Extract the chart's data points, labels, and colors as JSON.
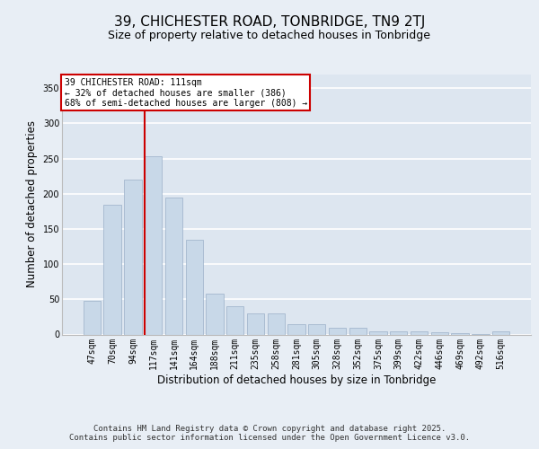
{
  "title": "39, CHICHESTER ROAD, TONBRIDGE, TN9 2TJ",
  "subtitle": "Size of property relative to detached houses in Tonbridge",
  "xlabel": "Distribution of detached houses by size in Tonbridge",
  "ylabel": "Number of detached properties",
  "categories": [
    "47sqm",
    "70sqm",
    "94sqm",
    "117sqm",
    "141sqm",
    "164sqm",
    "188sqm",
    "211sqm",
    "235sqm",
    "258sqm",
    "281sqm",
    "305sqm",
    "328sqm",
    "352sqm",
    "375sqm",
    "399sqm",
    "422sqm",
    "446sqm",
    "469sqm",
    "492sqm",
    "516sqm"
  ],
  "values": [
    48,
    185,
    220,
    253,
    195,
    135,
    58,
    40,
    30,
    30,
    15,
    15,
    9,
    9,
    4,
    5,
    4,
    3,
    2,
    1,
    5
  ],
  "bar_color": "#c8d8e8",
  "bar_edgecolor": "#9ab0c8",
  "bar_linewidth": 0.5,
  "marker_line_color": "#cc0000",
  "annotation_line1": "39 CHICHESTER ROAD: 111sqm",
  "annotation_line2": "← 32% of detached houses are smaller (386)",
  "annotation_line3": "68% of semi-detached houses are larger (808) →",
  "annotation_box_edgecolor": "#cc0000",
  "annotation_box_facecolor": "#ffffff",
  "ylim": [
    0,
    370
  ],
  "yticks": [
    0,
    50,
    100,
    150,
    200,
    250,
    300,
    350
  ],
  "background_color": "#dde6f0",
  "fig_background_color": "#e8eef5",
  "grid_color": "#ffffff",
  "title_fontsize": 11,
  "subtitle_fontsize": 9,
  "xlabel_fontsize": 8.5,
  "ylabel_fontsize": 8.5,
  "tick_fontsize": 7,
  "footer_line1": "Contains HM Land Registry data © Crown copyright and database right 2025.",
  "footer_line2": "Contains public sector information licensed under the Open Government Licence v3.0."
}
